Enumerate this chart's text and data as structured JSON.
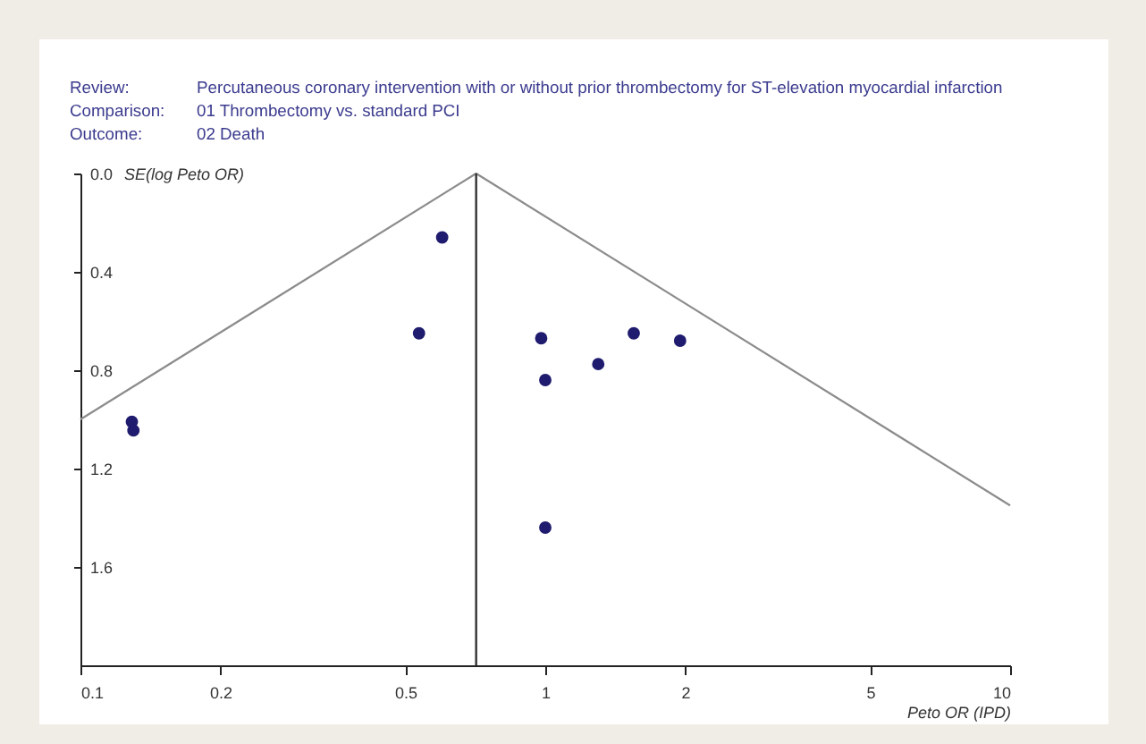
{
  "chart_data": {
    "type": "scatter",
    "xlabel": "Peto OR (IPD)",
    "ylabel": "SE(log Peto OR)",
    "annotations": [
      "Review:",
      "Percutaneous coronary intervention with or without prior thrombectomy for ST-elevation myocardial infarction",
      "Comparison:",
      "01 Thrombectomy vs. standard PCI",
      "Outcome:",
      "02 Death"
    ],
    "log": "x",
    "xlim": [
      0.1,
      10
    ],
    "xticks": [
      0.1,
      0.2,
      0.5,
      1,
      2,
      5,
      10
    ],
    "ylim": [
      2.0,
      0
    ],
    "yticks": [
      {
        "value": 0,
        "label": "0.0"
      },
      0.4,
      0.8,
      1.2,
      1.6
    ],
    "grid": false,
    "series": [
      {
        "color": "#1f1b6e",
        "marker": "circle",
        "x": [
          0.6,
          0.535,
          0.129,
          0.13,
          0.98,
          1.0,
          1.3,
          1.0,
          1.55,
          1.95
        ],
        "values": [
          0.26,
          0.65,
          1.01,
          1.045,
          0.67,
          0.84,
          0.775,
          1.44,
          0.65,
          0.68
        ]
      },
      {
        "type": "line",
        "color": "#8c8c8c",
        "marker": "none",
        "line_style": "solid",
        "x": [
          0.1,
          0.71,
          10
        ],
        "values": [
          1.0,
          0,
          1.35
        ]
      }
    ],
    "ref_lines": [
      {
        "axis": "x",
        "value": 0.71,
        "color": "#333333",
        "line_style": "solid"
      }
    ]
  }
}
